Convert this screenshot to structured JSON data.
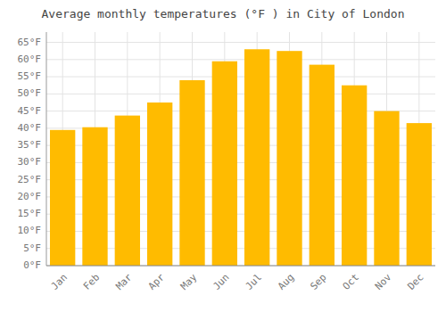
{
  "chart_data": {
    "type": "bar",
    "title": "Average monthly temperatures (°F ) in City of London",
    "categories": [
      "Jan",
      "Feb",
      "Mar",
      "Apr",
      "May",
      "Jun",
      "Jul",
      "Aug",
      "Sep",
      "Oct",
      "Nov",
      "Dec"
    ],
    "values": [
      39.5,
      40.3,
      43.7,
      47.5,
      54.0,
      59.5,
      63.0,
      62.5,
      58.5,
      52.5,
      45.0,
      41.5
    ],
    "color": "#FFBB00",
    "ylim": [
      0,
      68
    ],
    "yticks": [
      {
        "value": 0,
        "label": "0°F"
      },
      {
        "value": 5,
        "label": "5°F"
      },
      {
        "value": 10,
        "label": "10°F"
      },
      {
        "value": 15,
        "label": "15°F"
      },
      {
        "value": 20,
        "label": "20°F"
      },
      {
        "value": 25,
        "label": "25°F"
      },
      {
        "value": 30,
        "label": "30°F"
      },
      {
        "value": 35,
        "label": "35°F"
      },
      {
        "value": 40,
        "label": "40°F"
      },
      {
        "value": 45,
        "label": "45°F"
      },
      {
        "value": 50,
        "label": "50°F"
      },
      {
        "value": 55,
        "label": "55°F"
      },
      {
        "value": 60,
        "label": "60°F"
      },
      {
        "value": 65,
        "label": "65°F"
      }
    ],
    "grid": true
  }
}
